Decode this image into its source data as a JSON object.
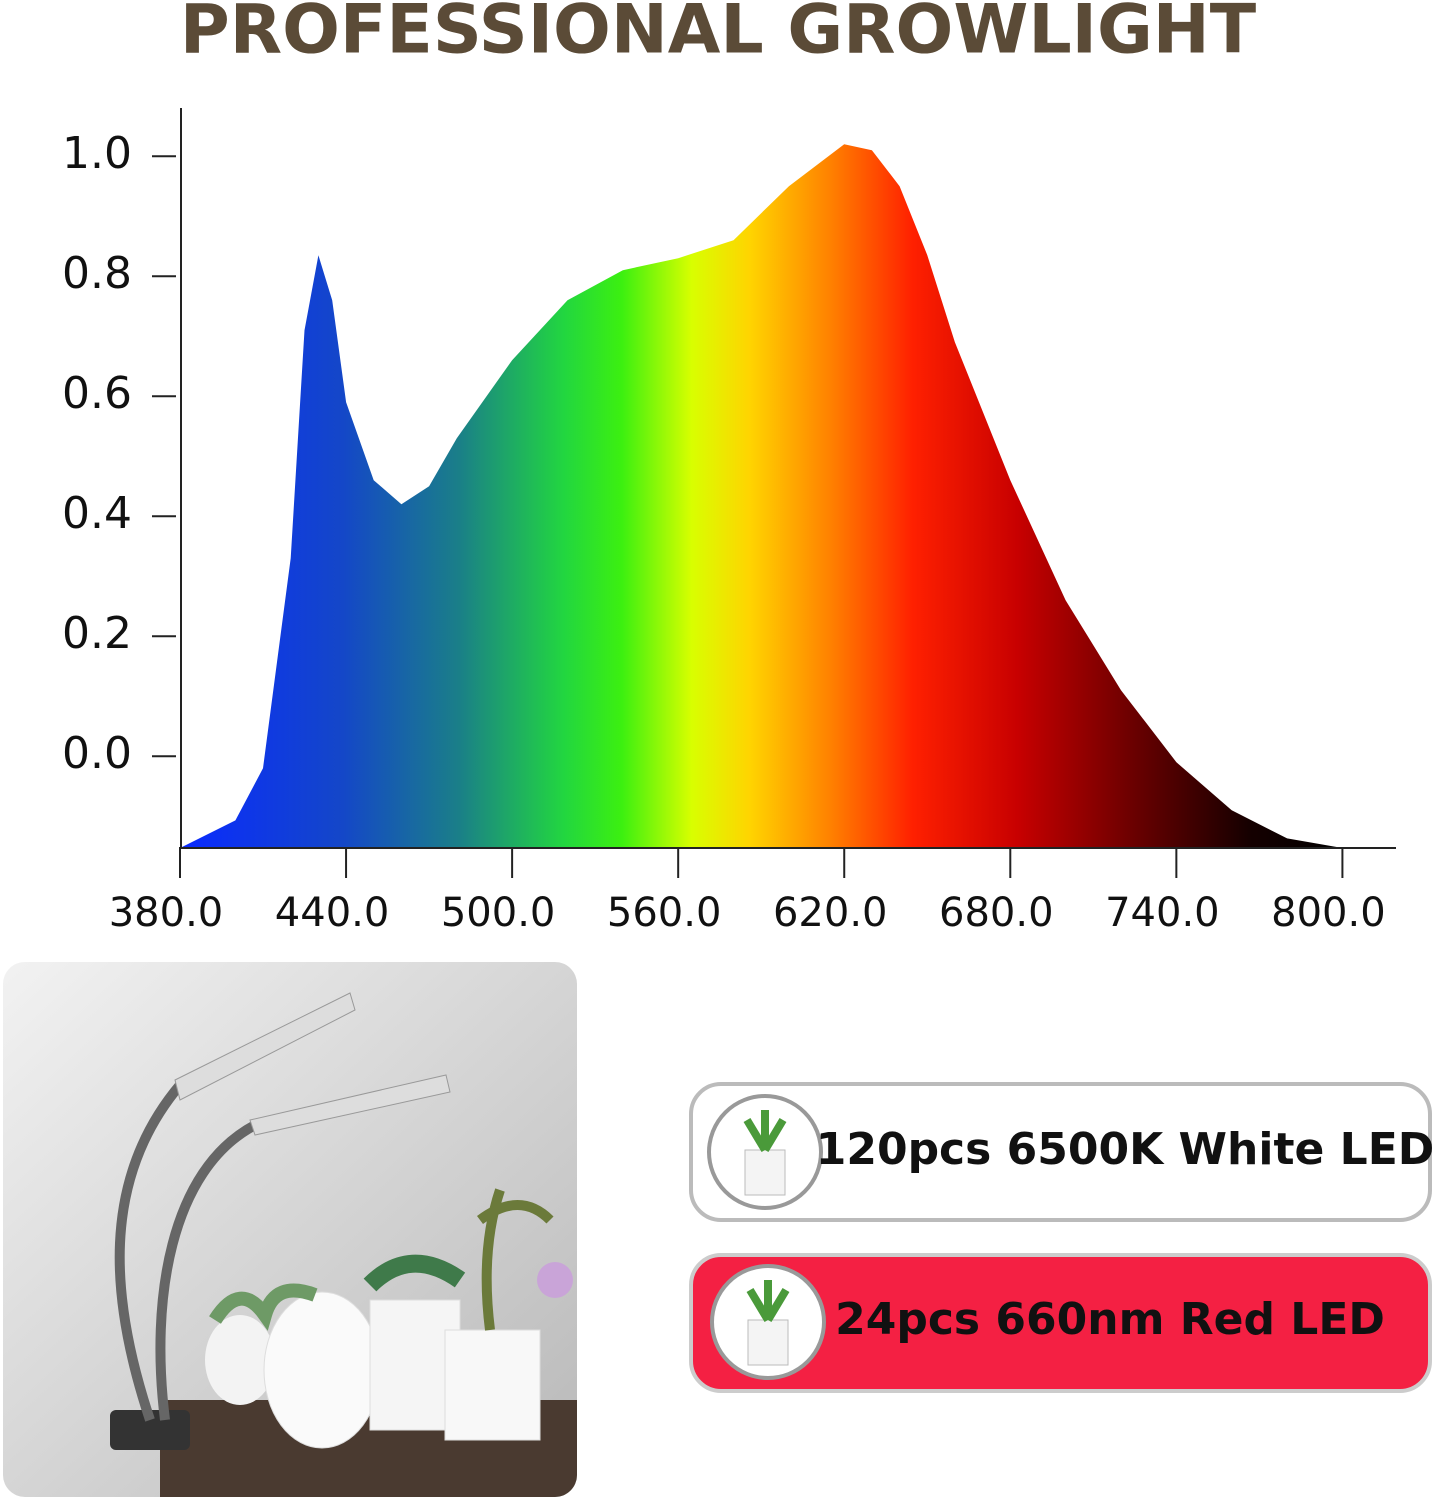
{
  "chart_data": {
    "type": "area",
    "title": "PROFESSIONAL GROWLIGHT",
    "x": [
      380,
      400,
      410,
      420,
      425,
      430,
      435,
      440,
      450,
      460,
      470,
      480,
      500,
      520,
      540,
      560,
      580,
      600,
      620,
      630,
      640,
      650,
      660,
      680,
      700,
      720,
      740,
      760,
      780,
      800
    ],
    "values": [
      -0.153,
      -0.107,
      -0.02,
      0.33,
      0.71,
      0.835,
      0.76,
      0.59,
      0.46,
      0.42,
      0.45,
      0.53,
      0.66,
      0.76,
      0.81,
      0.83,
      0.86,
      0.95,
      1.02,
      1.01,
      0.95,
      0.835,
      0.69,
      0.46,
      0.26,
      0.11,
      -0.01,
      -0.09,
      -0.137,
      -0.153
    ],
    "xlim": [
      380,
      819
    ],
    "ylim": [
      -0.153,
      1.077
    ],
    "xticks": [
      {
        "value": 380,
        "label": "380.0"
      },
      {
        "value": 440,
        "label": "440.0"
      },
      {
        "value": 500,
        "label": "500.0"
      },
      {
        "value": 560,
        "label": "560.0"
      },
      {
        "value": 620,
        "label": "620.0"
      },
      {
        "value": 680,
        "label": "680.0"
      },
      {
        "value": 740,
        "label": "740.0"
      },
      {
        "value": 800,
        "label": "800.0"
      }
    ],
    "yticks": [
      {
        "value": 0,
        "label": "0.0"
      },
      0.2,
      0.4,
      0.6,
      0.8,
      {
        "value": 1,
        "label": "1.0"
      }
    ],
    "grid": false
  },
  "leds": [
    {
      "label": "120pcs 6500K White LED"
    },
    {
      "label": "24pcs 660nm Red LED"
    }
  ]
}
